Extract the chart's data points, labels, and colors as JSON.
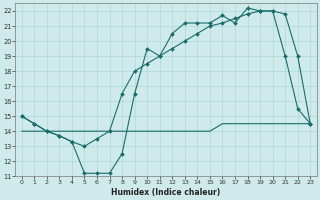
{
  "xlabel": "Humidex (Indice chaleur)",
  "xlim": [
    -0.5,
    23.5
  ],
  "ylim": [
    11,
    22.5
  ],
  "yticks": [
    11,
    12,
    13,
    14,
    15,
    16,
    17,
    18,
    19,
    20,
    21,
    22
  ],
  "xticks": [
    0,
    1,
    2,
    3,
    4,
    5,
    6,
    7,
    8,
    9,
    10,
    11,
    12,
    13,
    14,
    15,
    16,
    17,
    18,
    19,
    20,
    21,
    22,
    23
  ],
  "bg_color": "#ceeaea",
  "line_color": "#1a6b6b",
  "line1_x": [
    0,
    1,
    2,
    3,
    4,
    5,
    6,
    7,
    8,
    9,
    10,
    11,
    12,
    13,
    14,
    15,
    16,
    17,
    18,
    19,
    20,
    21,
    22,
    23
  ],
  "line1_y": [
    15.0,
    14.5,
    14.0,
    13.7,
    13.3,
    11.2,
    11.2,
    11.2,
    12.5,
    16.5,
    19.5,
    19.0,
    20.5,
    21.2,
    21.2,
    21.2,
    21.7,
    21.2,
    22.2,
    22.0,
    22.0,
    19.0,
    15.5,
    14.5
  ],
  "line2_x": [
    0,
    1,
    2,
    3,
    4,
    5,
    6,
    7,
    8,
    9,
    10,
    11,
    12,
    13,
    14,
    15,
    16,
    17,
    18,
    19,
    20,
    21,
    22,
    23
  ],
  "line2_y": [
    15.0,
    14.5,
    14.0,
    13.7,
    13.3,
    13.0,
    13.5,
    14.0,
    16.5,
    18.0,
    18.5,
    19.0,
    19.5,
    20.0,
    20.5,
    21.0,
    21.2,
    21.5,
    21.8,
    22.0,
    22.0,
    21.8,
    19.0,
    14.5
  ],
  "line3_x": [
    0,
    1,
    2,
    3,
    4,
    5,
    6,
    7,
    8,
    9,
    10,
    11,
    12,
    13,
    14,
    15,
    16,
    17,
    18,
    19,
    20,
    21,
    22,
    23
  ],
  "line3_y": [
    14.0,
    14.0,
    14.0,
    14.0,
    14.0,
    14.0,
    14.0,
    14.0,
    14.0,
    14.0,
    14.0,
    14.0,
    14.0,
    14.0,
    14.0,
    14.0,
    14.5,
    14.5,
    14.5,
    14.5,
    14.5,
    14.5,
    14.5,
    14.5
  ]
}
